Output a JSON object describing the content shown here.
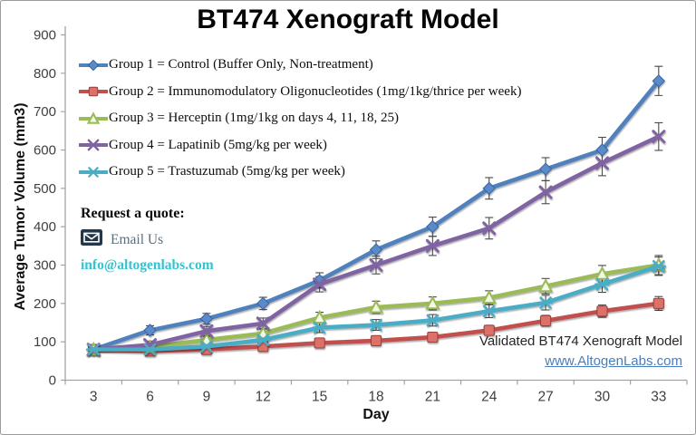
{
  "title": "BT474 Xenograft Model",
  "quote": {
    "heading": "Request a quote:",
    "email_label": "Email Us",
    "email": "info@altogenlabs.com"
  },
  "footer": {
    "note": "Validated BT474 Xenograft Model",
    "url": "www.AltogenLabs.com"
  },
  "palette": {
    "axis": "#a3a3a3",
    "tick_text": "#3f3f3f",
    "error_bar": "#4a4a4a",
    "link_blue": "#4a7ebb",
    "email_teal": "#38c2cf",
    "envelope_navy": "#22384a"
  },
  "chart_data": {
    "type": "line",
    "x": [
      3,
      6,
      9,
      12,
      15,
      18,
      21,
      24,
      27,
      30,
      33
    ],
    "xlabel": "Day",
    "ylabel": "Average Tumor Volume (mm3)",
    "ylim": [
      0,
      900
    ],
    "y_tick_step": 100,
    "grid": false,
    "legend_position": "top-left-inside",
    "series": [
      {
        "name": "Group 1",
        "label": "Group 1 = Control (Buffer Only, Non-treatment)",
        "color": "#4F81BD",
        "color_dark": "#38639d",
        "marker_fill": "#5A8AC9",
        "marker": "diamond",
        "values": [
          80,
          130,
          160,
          200,
          260,
          340,
          400,
          500,
          550,
          600,
          780
        ],
        "errors": [
          8,
          12,
          14,
          16,
          20,
          23,
          25,
          28,
          30,
          33,
          38
        ]
      },
      {
        "name": "Group 2",
        "label": "Group 2 = Immunomodulatory Oligonucleotides (1mg/1kg/thrice per week)",
        "color": "#C0504D",
        "color_dark": "#963f3c",
        "marker_fill": "#DD7168",
        "marker": "square",
        "values": [
          80,
          76,
          80,
          88,
          97,
          103,
          112,
          130,
          155,
          180,
          200
        ],
        "errors": [
          6,
          6,
          7,
          8,
          9,
          10,
          11,
          13,
          14,
          16,
          18
        ]
      },
      {
        "name": "Group 3",
        "label": "Group 3 = Herceptin (1mg/1kg on days 4, 11, 18, 25)",
        "color": "#9BBB59",
        "color_dark": "#7a9a40",
        "marker_fill": "#f2f7e6",
        "marker": "triangle-open",
        "values": [
          80,
          86,
          105,
          122,
          163,
          190,
          200,
          215,
          245,
          277,
          300
        ],
        "errors": [
          7,
          8,
          9,
          11,
          14,
          16,
          17,
          18,
          20,
          22,
          25
        ]
      },
      {
        "name": "Group 4",
        "label": "Group 4 = Lapatinib (5mg/kg per week)",
        "color": "#8064A2",
        "color_dark": "#66517f",
        "marker_fill": "#8064A2",
        "marker": "x",
        "values": [
          80,
          92,
          128,
          148,
          250,
          300,
          350,
          396,
          490,
          566,
          635
        ],
        "errors": [
          8,
          10,
          12,
          14,
          20,
          23,
          25,
          28,
          30,
          33,
          36
        ]
      },
      {
        "name": "Group 5",
        "label": "Group 5 = Trastuzumab (5mg/kg per week)",
        "color": "#4BACC6",
        "color_dark": "#3a8ba3",
        "marker_fill": "#4BACC6",
        "marker": "asterisk",
        "values": [
          80,
          80,
          88,
          105,
          137,
          144,
          156,
          180,
          202,
          250,
          297
        ],
        "errors": [
          7,
          8,
          9,
          10,
          13,
          14,
          15,
          17,
          19,
          21,
          24
        ]
      }
    ]
  }
}
